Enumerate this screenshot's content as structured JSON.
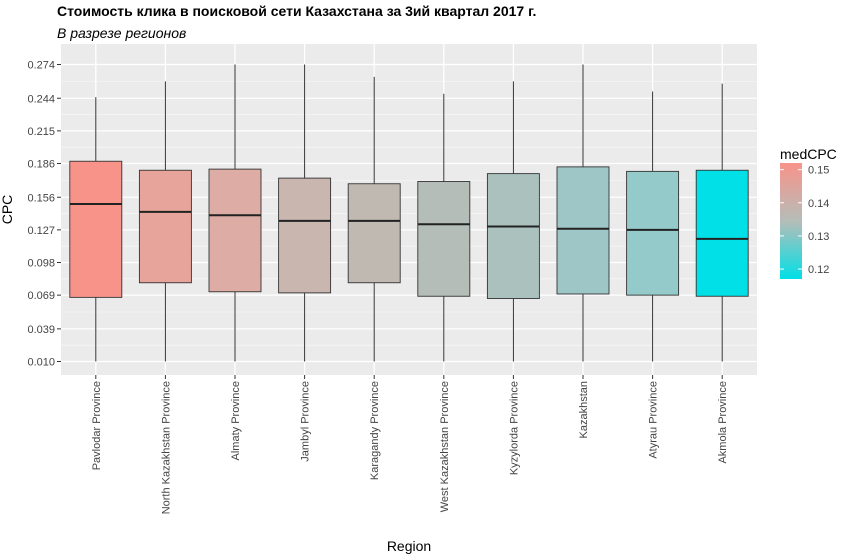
{
  "chart_data": {
    "type": "boxplot",
    "title": "Стоимость клика в поисковой сети Казахстана за 3ий квартал 2017 г.",
    "subtitle": "В разрезе регионов",
    "xlabel": "Region",
    "ylabel": "CPC",
    "ylim": [
      0.0,
      0.282
    ],
    "yticks": [
      "0.010",
      "0.039",
      "0.069",
      "0.098",
      "0.127",
      "0.156",
      "0.186",
      "0.215",
      "0.244",
      "0.274"
    ],
    "categories": [
      "Pavlodar Province",
      "North Kazakhstan Province",
      "Almaty Province",
      "Jambyl Province",
      "Karagandy Province",
      "West Kazakhstan Province",
      "Kyzylorda Province",
      "Kazakhstan",
      "Atyrau Province",
      "Akmola Province"
    ],
    "boxes": [
      {
        "min": 0.01,
        "q1": 0.067,
        "median": 0.15,
        "q3": 0.188,
        "max": 0.245,
        "medCPC": 0.15,
        "color": "#F8938A"
      },
      {
        "min": 0.01,
        "q1": 0.08,
        "median": 0.143,
        "q3": 0.18,
        "max": 0.259,
        "medCPC": 0.143,
        "color": "#E6A49A"
      },
      {
        "min": 0.01,
        "q1": 0.072,
        "median": 0.14,
        "q3": 0.181,
        "max": 0.274,
        "medCPC": 0.14,
        "color": "#DDADA5"
      },
      {
        "min": 0.01,
        "q1": 0.071,
        "median": 0.135,
        "q3": 0.173,
        "max": 0.274,
        "medCPC": 0.135,
        "color": "#C8B6AF"
      },
      {
        "min": 0.01,
        "q1": 0.08,
        "median": 0.135,
        "q3": 0.168,
        "max": 0.263,
        "medCPC": 0.135,
        "color": "#C0B9B2"
      },
      {
        "min": 0.01,
        "q1": 0.068,
        "median": 0.132,
        "q3": 0.17,
        "max": 0.248,
        "medCPC": 0.132,
        "color": "#B5BDB8"
      },
      {
        "min": 0.01,
        "q1": 0.066,
        "median": 0.13,
        "q3": 0.177,
        "max": 0.259,
        "medCPC": 0.13,
        "color": "#ABC1BE"
      },
      {
        "min": 0.01,
        "q1": 0.07,
        "median": 0.128,
        "q3": 0.183,
        "max": 0.274,
        "medCPC": 0.128,
        "color": "#9FC6C6"
      },
      {
        "min": 0.01,
        "q1": 0.069,
        "median": 0.127,
        "q3": 0.179,
        "max": 0.25,
        "medCPC": 0.127,
        "color": "#95CACA"
      },
      {
        "min": 0.01,
        "q1": 0.068,
        "median": 0.119,
        "q3": 0.18,
        "max": 0.257,
        "medCPC": 0.119,
        "color": "#00E0E6"
      }
    ],
    "legend": {
      "title": "medCPC",
      "labels": [
        "0.15",
        "0.14",
        "0.13",
        "0.12"
      ],
      "values": [
        0.15,
        0.14,
        0.13,
        0.12
      ],
      "range": [
        0.117,
        0.152
      ],
      "color_high": "#F8938A",
      "color_low": "#00E0E6",
      "placement": "right"
    },
    "panel_color": "#EBEBEB",
    "grid": true
  }
}
